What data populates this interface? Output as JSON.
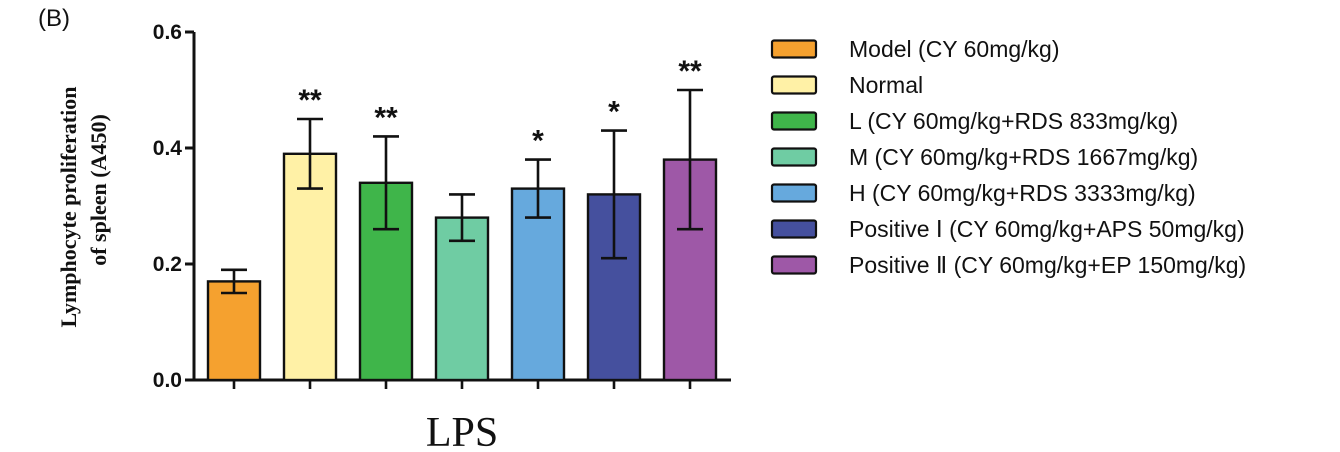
{
  "panel_label": "(B)",
  "chart_data": {
    "type": "bar",
    "title": "",
    "xlabel": "LPS",
    "ylabel": "Lymphocyte proliferation of spleen (A450)",
    "ylabel_lines": [
      "Lymphocyte proliferation",
      "of spleen (A450)"
    ],
    "ylim": [
      0,
      0.6
    ],
    "yticks": [
      0.0,
      0.2,
      0.4,
      0.6
    ],
    "ytick_labels": [
      "0.0",
      "0.2",
      "0.4",
      "0.6"
    ],
    "grid": false,
    "legend_position": "right",
    "error_bars": true,
    "series": [
      {
        "name": "Model (CY 60mg/kg)",
        "value": 0.17,
        "error": 0.02,
        "significance": "",
        "color": "#f5a12f"
      },
      {
        "name": "Normal",
        "value": 0.39,
        "error": 0.06,
        "significance": "**",
        "color": "#fff1a6"
      },
      {
        "name": "L (CY 60mg/kg+RDS 833mg/kg)",
        "value": 0.34,
        "error": 0.08,
        "significance": "**",
        "color": "#3fb54a"
      },
      {
        "name": "M (CY 60mg/kg+RDS 1667mg/kg)",
        "value": 0.28,
        "error": 0.04,
        "significance": "",
        "color": "#6fcca3"
      },
      {
        "name": "H (CY 60mg/kg+RDS 3333mg/kg)",
        "value": 0.33,
        "error": 0.05,
        "significance": "*",
        "color": "#66a9dd"
      },
      {
        "name": "Positive Ⅰ (CY 60mg/kg+APS 50mg/kg)",
        "value": 0.32,
        "error": 0.11,
        "significance": "*",
        "color": "#45509e"
      },
      {
        "name": "Positive Ⅱ (CY 60mg/kg+EP 150mg/kg)",
        "value": 0.38,
        "error": 0.12,
        "significance": "**",
        "color": "#9e58a7"
      }
    ]
  }
}
